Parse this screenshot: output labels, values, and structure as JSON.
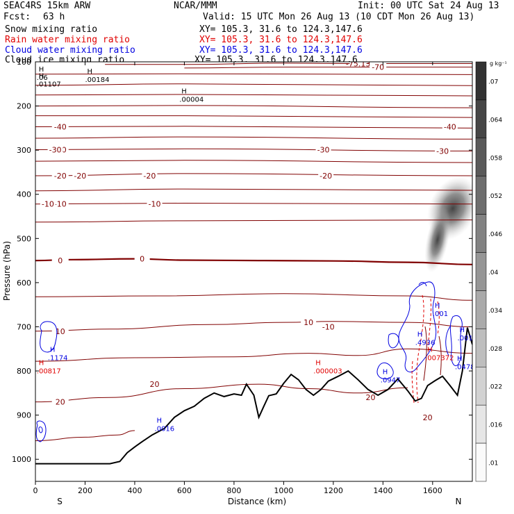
{
  "header": {
    "model": "SEAC4RS 15km ARW",
    "center": "NCAR/MMM",
    "init": "Init: 00 UTC Sat 24 Aug 13",
    "fcst_label": "Fcst:",
    "fcst_value": "63 h",
    "valid": "Valid: 15 UTC Mon 26 Aug 13 (10 CDT Mon 26 Aug 13)"
  },
  "fields": [
    {
      "name": "Snow mixing ratio",
      "xy": "XY= 105.3, 31.6 to 124.3,147.6",
      "color": "#000000"
    },
    {
      "name": "Rain water mixing ratio",
      "xy": "XY= 105.3, 31.6 to 124.3,147.6",
      "color": "#e00000"
    },
    {
      "name": "Cloud water mixing ratio",
      "xy": "XY= 105.3, 31.6 to 124.3,147.6",
      "color": "#0000e0"
    },
    {
      "name": "Cloud ice mixing ratio",
      "xy": "XY= 105.3, 31.6 to 124.3,147.6",
      "color": "#000000"
    }
  ],
  "chart_data": {
    "type": "cross-section",
    "xlabel": "Distance (km)",
    "ylabel": "Pressure (hPa)",
    "xlim": [
      0,
      1760
    ],
    "ylim": [
      1050,
      100
    ],
    "x_ticks": [
      0,
      200,
      400,
      600,
      800,
      1000,
      1200,
      1400,
      1600
    ],
    "y_ticks": [
      100,
      200,
      300,
      400,
      500,
      600,
      700,
      800,
      900,
      1000
    ],
    "x_end_labels": {
      "left": "S",
      "right": "N"
    },
    "colorbar": {
      "unit": "g kg⁻¹",
      "levels": [
        0.07,
        0.064,
        0.058,
        0.052,
        0.046,
        0.04,
        0.034,
        0.028,
        0.022,
        0.016,
        0.01
      ],
      "level_labels": [
        ".07",
        ".064",
        ".058",
        ".052",
        ".046",
        ".04",
        ".034",
        ".028",
        ".022",
        ".016",
        ".01"
      ]
    },
    "terrain": [
      [
        0,
        1010
      ],
      [
        100,
        1010
      ],
      [
        200,
        1010
      ],
      [
        300,
        1010
      ],
      [
        340,
        1005
      ],
      [
        370,
        985
      ],
      [
        400,
        972
      ],
      [
        430,
        960
      ],
      [
        470,
        945
      ],
      [
        520,
        930
      ],
      [
        560,
        905
      ],
      [
        600,
        890
      ],
      [
        640,
        880
      ],
      [
        680,
        862
      ],
      [
        720,
        850
      ],
      [
        760,
        858
      ],
      [
        800,
        852
      ],
      [
        830,
        855
      ],
      [
        850,
        830
      ],
      [
        880,
        855
      ],
      [
        900,
        905
      ],
      [
        920,
        880
      ],
      [
        940,
        856
      ],
      [
        970,
        852
      ],
      [
        1000,
        828
      ],
      [
        1030,
        808
      ],
      [
        1060,
        820
      ],
      [
        1090,
        842
      ],
      [
        1120,
        855
      ],
      [
        1150,
        842
      ],
      [
        1180,
        823
      ],
      [
        1220,
        812
      ],
      [
        1260,
        800
      ],
      [
        1300,
        820
      ],
      [
        1340,
        842
      ],
      [
        1380,
        855
      ],
      [
        1420,
        842
      ],
      [
        1460,
        818
      ],
      [
        1500,
        845
      ],
      [
        1530,
        868
      ],
      [
        1555,
        862
      ],
      [
        1580,
        833
      ],
      [
        1610,
        822
      ],
      [
        1640,
        812
      ],
      [
        1670,
        833
      ],
      [
        1700,
        855
      ],
      [
        1720,
        800
      ],
      [
        1740,
        702
      ],
      [
        1760,
        740
      ]
    ],
    "isotherms": [
      {
        "value": -75,
        "label": "-75.13",
        "pts": [
          [
            280,
            106
          ],
          [
            600,
            106
          ],
          [
            1000,
            103
          ],
          [
            1300,
            104
          ],
          [
            1760,
            104
          ]
        ]
      },
      {
        "value": -70,
        "label": "-70",
        "pts": [
          [
            600,
            114
          ],
          [
            1000,
            112
          ],
          [
            1380,
            112
          ],
          [
            1760,
            112
          ]
        ]
      },
      {
        "value": -65,
        "pts": [
          [
            0,
            128
          ],
          [
            600,
            127
          ],
          [
            1760,
            129
          ]
        ]
      },
      {
        "value": -60,
        "pts": [
          [
            0,
            153
          ],
          [
            600,
            150
          ],
          [
            1760,
            154
          ]
        ]
      },
      {
        "value": -55,
        "pts": [
          [
            0,
            175
          ],
          [
            600,
            174
          ],
          [
            1760,
            177
          ]
        ]
      },
      {
        "value": -50,
        "pts": [
          [
            0,
            200
          ],
          [
            600,
            199
          ],
          [
            1760,
            204
          ]
        ]
      },
      {
        "value": -45,
        "pts": [
          [
            0,
            222
          ],
          [
            600,
            222
          ],
          [
            1760,
            226
          ]
        ]
      },
      {
        "value": -40,
        "label": "-40",
        "pts": [
          [
            0,
            247
          ],
          [
            600,
            246
          ],
          [
            1760,
            250
          ]
        ]
      },
      {
        "value": -35,
        "pts": [
          [
            0,
            273
          ],
          [
            600,
            270
          ],
          [
            1760,
            275
          ]
        ]
      },
      {
        "value": -30,
        "label": "-30",
        "pts": [
          [
            0,
            299
          ],
          [
            600,
            297
          ],
          [
            1760,
            302
          ]
        ]
      },
      {
        "value": -25,
        "pts": [
          [
            0,
            325
          ],
          [
            600,
            323
          ],
          [
            1760,
            328
          ]
        ]
      },
      {
        "value": -20,
        "label": "-20",
        "pts": [
          [
            0,
            358
          ],
          [
            600,
            353
          ],
          [
            1760,
            358
          ]
        ]
      },
      {
        "value": -15,
        "pts": [
          [
            0,
            392
          ],
          [
            600,
            388
          ],
          [
            1760,
            391
          ]
        ]
      },
      {
        "value": -10,
        "label": "-10",
        "pts": [
          [
            0,
            422
          ],
          [
            600,
            420
          ],
          [
            1760,
            422
          ]
        ]
      },
      {
        "value": -5,
        "pts": [
          [
            0,
            463
          ],
          [
            600,
            460
          ],
          [
            1760,
            458
          ]
        ]
      },
      {
        "value": 0,
        "label": "0",
        "bold": true,
        "pts": [
          [
            0,
            550
          ],
          [
            150,
            548
          ],
          [
            400,
            546
          ],
          [
            600,
            549
          ],
          [
            900,
            550
          ],
          [
            1200,
            551
          ],
          [
            1500,
            554
          ],
          [
            1760,
            559
          ]
        ]
      },
      {
        "value": 5,
        "pts": [
          [
            0,
            632
          ],
          [
            500,
            630
          ],
          [
            1000,
            625
          ],
          [
            1500,
            630
          ],
          [
            1760,
            640
          ]
        ]
      },
      {
        "value": 10,
        "label": "10",
        "pts": [
          [
            0,
            710
          ],
          [
            300,
            705
          ],
          [
            700,
            695
          ],
          [
            1000,
            690
          ],
          [
            1200,
            688
          ],
          [
            1500,
            690
          ],
          [
            1760,
            700
          ]
        ]
      },
      {
        "value": 15,
        "pts": [
          [
            0,
            778
          ],
          [
            400,
            770
          ],
          [
            800,
            768
          ],
          [
            1100,
            760
          ],
          [
            1300,
            765
          ],
          [
            1500,
            750
          ],
          [
            1760,
            760
          ]
        ]
      },
      {
        "value": 20,
        "label": "20",
        "pts": [
          [
            0,
            870
          ],
          [
            300,
            860
          ],
          [
            600,
            840
          ],
          [
            900,
            830
          ],
          [
            1100,
            840
          ],
          [
            1300,
            850
          ],
          [
            1500,
            838
          ]
        ]
      },
      {
        "value": 25,
        "pts": [
          [
            0,
            958
          ],
          [
            200,
            950
          ],
          [
            330,
            945
          ],
          [
            400,
            935
          ]
        ]
      }
    ],
    "extrema": [
      {
        "symbol": "H",
        "value": ".06",
        "x": 5,
        "p": 125,
        "color": "#000000"
      },
      {
        "symbol": "H",
        "value": ".01107",
        "x": 5,
        "p": 140,
        "color": "#000000"
      },
      {
        "symbol": "H",
        "value": ".00184",
        "x": 200,
        "p": 130,
        "color": "#000000"
      },
      {
        "symbol": "H",
        "value": ".00004",
        "x": 580,
        "p": 175,
        "color": "#000000"
      },
      {
        "symbol": "H",
        "value": ".1174",
        "x": 50,
        "p": 760,
        "color": "#0000e0"
      },
      {
        "symbol": "H",
        "value": ".00817",
        "x": 5,
        "p": 790,
        "color": "#e00000"
      },
      {
        "symbol": "H",
        "value": ".0016",
        "x": 480,
        "p": 920,
        "color": "#0000e0"
      },
      {
        "symbol": "H",
        "value": ".000003",
        "x": 1120,
        "p": 790,
        "color": "#e00000"
      },
      {
        "symbol": "H",
        "value": ".0947",
        "x": 1390,
        "p": 810,
        "color": "#0000e0"
      },
      {
        "symbol": "H",
        "value": ".4936",
        "x": 1530,
        "p": 725,
        "color": "#0000e0"
      },
      {
        "symbol": "H",
        "value": ".007372",
        "x": 1570,
        "p": 760,
        "color": "#e00000"
      },
      {
        "symbol": "H",
        "value": ".001",
        "x": 1600,
        "p": 660,
        "color": "#0000e0"
      },
      {
        "symbol": "H",
        "value": ".001",
        "x": 1700,
        "p": 715,
        "color": "#0000e0"
      },
      {
        "symbol": "H",
        "value": ".0478",
        "x": 1690,
        "p": 780,
        "color": "#0000e0"
      }
    ],
    "extra_labels": [
      {
        "value": "-10",
        "x": 1180,
        "p": 700,
        "color": "#800000"
      },
      {
        "value": "20",
        "x": 1350,
        "p": 860,
        "color": "#800000"
      },
      {
        "value": "20",
        "x": 1580,
        "p": 905,
        "color": "#800000"
      },
      {
        "value": "-20",
        "x": 1170,
        "p": 358,
        "color": "#800000"
      },
      {
        "value": "-30",
        "x": 1160,
        "p": 299,
        "color": "#800000"
      },
      {
        "value": "-20",
        "x": 180,
        "p": 358,
        "color": "#800000"
      },
      {
        "value": "-30",
        "x": 80,
        "p": 299,
        "color": "#800000"
      },
      {
        "value": "-10",
        "x": 50,
        "p": 422,
        "color": "#800000"
      },
      {
        "value": "-10",
        "x": 480,
        "p": 422,
        "color": "#800000"
      },
      {
        "value": "-20",
        "x": 460,
        "p": 358,
        "color": "#800000"
      },
      {
        "value": "0",
        "x": 430,
        "p": 546,
        "color": "#800000"
      },
      {
        "value": "10",
        "x": 1100,
        "p": 690,
        "color": "#800000"
      },
      {
        "value": "-30",
        "x": 1640,
        "p": 302,
        "color": "#800000"
      },
      {
        "value": "-40",
        "x": 1670,
        "p": 247,
        "color": "#800000"
      },
      {
        "value": "20",
        "x": 480,
        "p": 830,
        "color": "#800000"
      }
    ]
  }
}
